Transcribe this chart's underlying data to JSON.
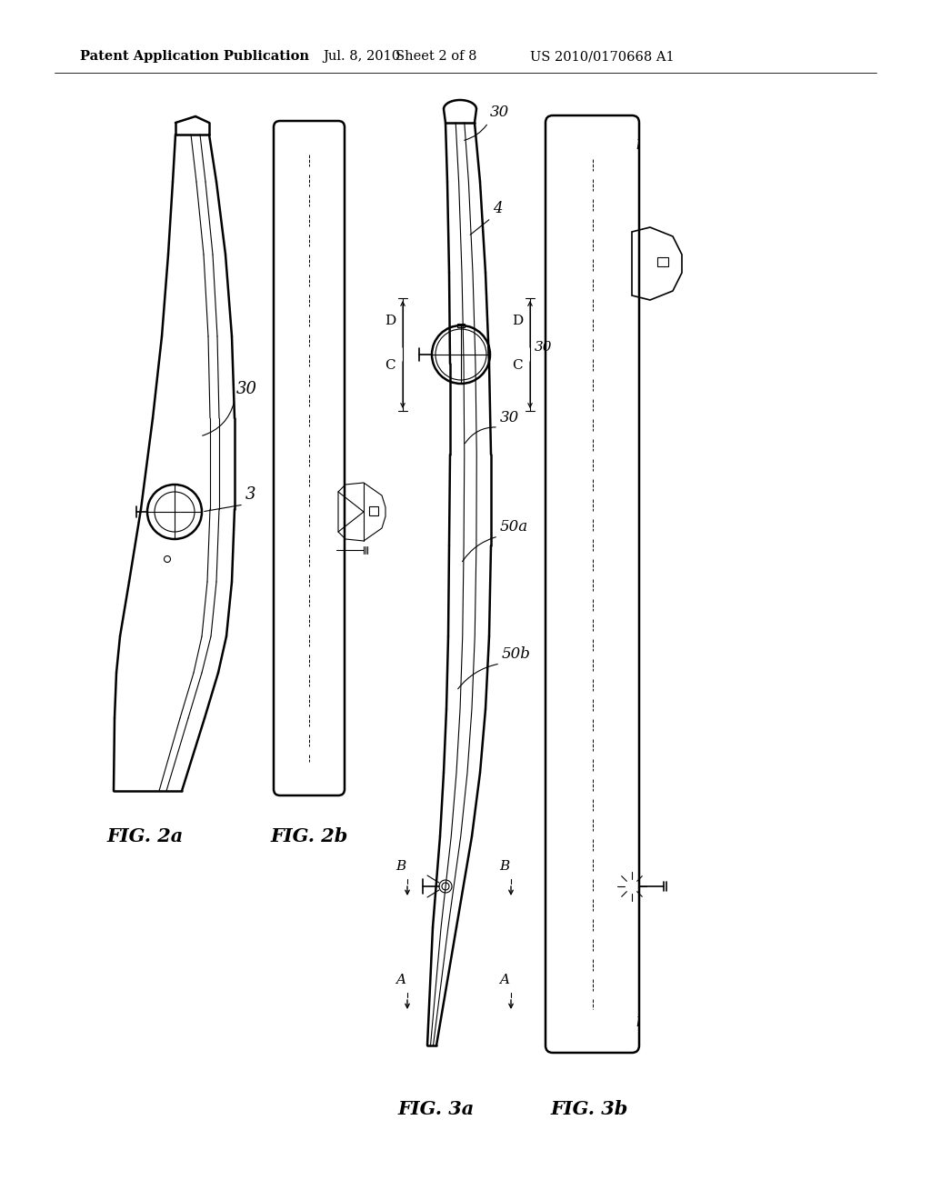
{
  "background_color": "#ffffff",
  "header_left": "Patent Application Publication",
  "header_mid": "Jul. 8, 2010",
  "header_mid2": "Sheet 2 of 8",
  "header_right": "US 2010/0170668 A1",
  "fig2a_label": "FIG. 2a",
  "fig2b_label": "FIG. 2b",
  "fig3a_label": "FIG. 3a",
  "fig3b_label": "FIG. 3b",
  "line_color": "#000000",
  "text_color": "#000000",
  "header_fontsize": 10.5,
  "label_fontsize": 15
}
